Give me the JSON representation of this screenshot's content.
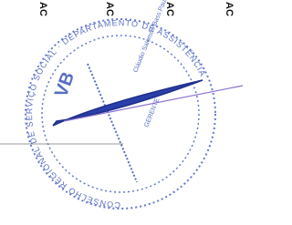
{
  "header": {
    "labels": [
      "AC",
      "AC",
      "AC",
      "AC"
    ]
  },
  "stamp": {
    "ring_text": "CONSELHO REGIONAL DE SERVIÇO SOCIAL · DEPARTAMENTO DE ASSISTÊNCIA",
    "inner_text": "Cláudio Salomão Bass Paulo",
    "role": "GERENTE",
    "mark": "VB"
  }
}
